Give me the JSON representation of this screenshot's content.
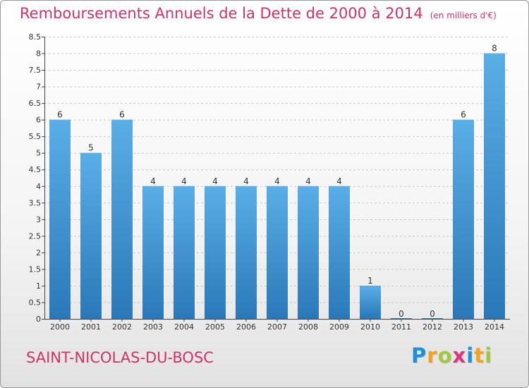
{
  "title": "Remboursements Annuels de la Dette de 2000 à 2014",
  "title_unit": "(en milliers d'€)",
  "commune": "SAINT-NICOLAS-DU-BOSC",
  "logo": {
    "text": "Proxiti",
    "letters": [
      "P",
      "r",
      "o",
      "x",
      "i",
      "t",
      "i"
    ],
    "letter_colors": [
      "#1e90d8",
      "#f2a21b",
      "#9fc93c",
      "#e0337c",
      "#1e90d8",
      "#f2a21b",
      "#9fc93c"
    ]
  },
  "colors": {
    "bar_top": "#5aaee6",
    "bar_bottom": "#2a78b8",
    "grid": "#c8c8c8",
    "axis": "#444444",
    "title": "#cc3366"
  },
  "chart_data": {
    "type": "bar",
    "categories": [
      "2000",
      "2001",
      "2002",
      "2003",
      "2004",
      "2005",
      "2006",
      "2007",
      "2008",
      "2009",
      "2010",
      "2011",
      "2012",
      "2013",
      "2014"
    ],
    "values": [
      6,
      5,
      6,
      4,
      4,
      4,
      4,
      4,
      4,
      4,
      1,
      0,
      0,
      6,
      8
    ],
    "data_labels": [
      "6",
      "5",
      "6",
      "4",
      "4",
      "4",
      "4",
      "4",
      "4",
      "4",
      "1",
      "0",
      "0",
      "6",
      "8"
    ],
    "yticks": [
      0,
      0.5,
      1,
      1.5,
      2,
      2.5,
      3,
      3.5,
      4,
      4.5,
      5,
      5.5,
      6,
      6.5,
      7,
      7.5,
      8,
      8.5
    ],
    "ytick_labels": [
      "0",
      "0.5",
      "1",
      "1.5",
      "2",
      "2.5",
      "3",
      "3.5",
      "4",
      "4.5",
      "5",
      "5.5",
      "6",
      "6.5",
      "7",
      "7.5",
      "8",
      "8.5"
    ],
    "ylim": [
      0,
      8.5
    ],
    "grid": true,
    "title": "Remboursements Annuels de la Dette de 2000 à 2014",
    "xlabel": "",
    "ylabel": ""
  }
}
